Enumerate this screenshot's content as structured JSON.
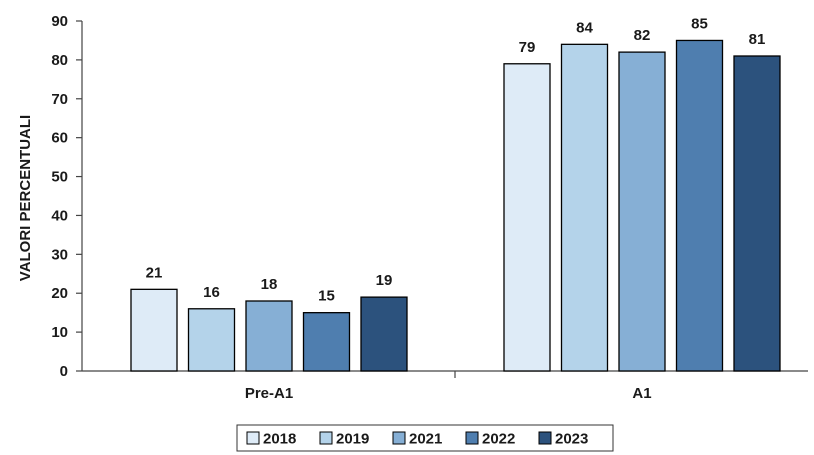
{
  "chart_data": {
    "type": "bar",
    "categories": [
      "Pre-A1",
      "A1"
    ],
    "series": [
      {
        "name": "2018",
        "values": [
          21,
          79
        ],
        "color": "#DEEBF7"
      },
      {
        "name": "2019",
        "values": [
          16,
          84
        ],
        "color": "#B4D3EA"
      },
      {
        "name": "2021",
        "values": [
          18,
          82
        ],
        "color": "#86AFD5"
      },
      {
        "name": "2022",
        "values": [
          15,
          85
        ],
        "color": "#4F7EAF"
      },
      {
        "name": "2023",
        "values": [
          19,
          81
        ],
        "color": "#2C527D"
      }
    ],
    "title": "",
    "xlabel": "",
    "ylabel": "VALORI PERCENTUALI",
    "ylim": [
      0,
      90
    ],
    "yticks": [
      0,
      10,
      20,
      30,
      40,
      50,
      60,
      70,
      80,
      90
    ],
    "grid": false,
    "legend_position": "bottom",
    "data_labels": true
  }
}
